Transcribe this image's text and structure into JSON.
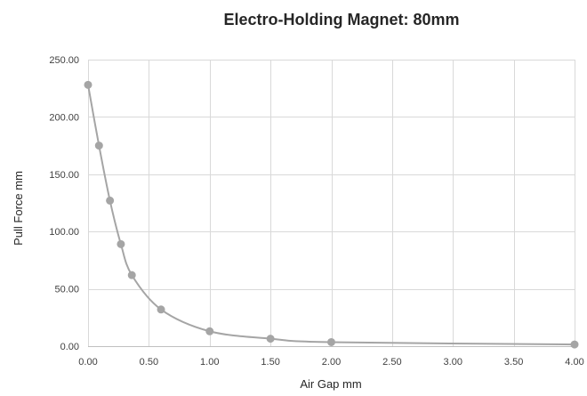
{
  "colors": {
    "series": "#a5a5a5",
    "grid": "#d9d9d9",
    "text": "#262626"
  },
  "chart_data": {
    "type": "scatter",
    "title": "Electro-Holding Magnet: 80mm",
    "xlabel": "Air Gap mm",
    "ylabel": "Pull Force mm",
    "xlim": [
      0,
      4
    ],
    "ylim": [
      0,
      250
    ],
    "x_ticks": [
      "0.00",
      "0.50",
      "1.00",
      "1.50",
      "2.00",
      "2.50",
      "3.00",
      "3.50",
      "4.00"
    ],
    "y_ticks": [
      "0.00",
      "50.00",
      "100.00",
      "150.00",
      "200.00",
      "250.00"
    ],
    "grid": "vertical and horizontal major gridlines",
    "legend": "none",
    "smoothed_line": true,
    "markers": true,
    "series": [
      {
        "x": [
          0,
          0.09,
          0.18,
          0.27,
          0.36,
          0.6,
          1.0,
          1.5,
          2.0,
          4.0
        ],
        "y": [
          228,
          175,
          127,
          89,
          62,
          32,
          13,
          6.5,
          3.5,
          1.5
        ]
      }
    ]
  }
}
